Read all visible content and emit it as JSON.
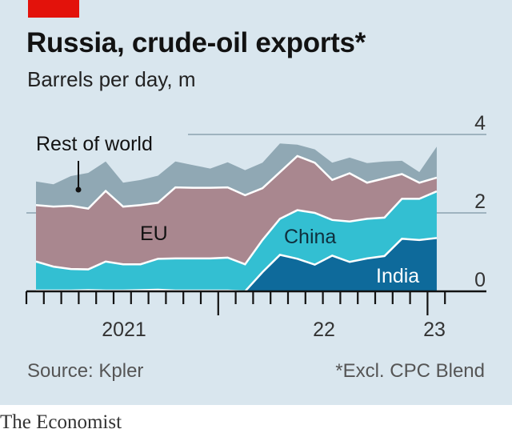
{
  "header": {
    "title": "Russia, crude-oil exports*",
    "subtitle": "Barrels per day, m"
  },
  "footer": {
    "source": "Source: Kpler",
    "footnote": "*Excl. CPC Blend",
    "brand": "The Economist"
  },
  "colors": {
    "rest_of_world": "#90a8b4",
    "eu": "#a9878f",
    "china": "#33bfd2",
    "india": "#0e6a9b",
    "accent": "#e3120b"
  },
  "chart_data": {
    "type": "area",
    "stacked": true,
    "title": "Russia, crude-oil exports*",
    "ylabel": "Barrels per day, m",
    "ylim": [
      0,
      4
    ],
    "yticks": [
      0,
      2,
      4
    ],
    "ytick_labels": [
      "0",
      "2",
      "4"
    ],
    "xtick_labels": [
      "2021",
      "22",
      "23"
    ],
    "x": [
      "2021-02",
      "2021-03",
      "2021-04",
      "2021-05",
      "2021-06",
      "2021-07",
      "2021-08",
      "2021-09",
      "2021-10",
      "2021-11",
      "2021-12",
      "2022-01",
      "2022-02",
      "2022-03",
      "2022-04",
      "2022-05",
      "2022-06",
      "2022-07",
      "2022-08",
      "2022-09",
      "2022-10",
      "2022-11",
      "2022-12",
      "2023-01"
    ],
    "series": [
      {
        "name": "India",
        "values": [
          0.02,
          0.02,
          0.02,
          0.03,
          0.02,
          0.02,
          0.03,
          0.04,
          0.02,
          0.02,
          0.02,
          0.02,
          0,
          0.49,
          0.93,
          0.83,
          0.68,
          0.91,
          0.75,
          0.84,
          0.9,
          1.34,
          1.31,
          1.36
        ]
      },
      {
        "name": "China",
        "values": [
          0.74,
          0.61,
          0.55,
          0.53,
          0.74,
          0.67,
          0.66,
          0.79,
          0.82,
          0.82,
          0.82,
          0.84,
          0.69,
          0.82,
          0.92,
          1.24,
          1.32,
          0.91,
          1.03,
          1.01,
          0.98,
          1.02,
          1.05,
          1.19
        ]
      },
      {
        "name": "EU",
        "values": [
          1.44,
          1.53,
          1.61,
          1.55,
          1.8,
          1.47,
          1.51,
          1.43,
          1.81,
          1.8,
          1.8,
          1.79,
          1.76,
          1.32,
          1.19,
          1.38,
          1.28,
          1.02,
          1.23,
          0.92,
          1.0,
          0.63,
          0.41,
          0.35
        ]
      },
      {
        "name": "Rest of world",
        "values": [
          0.6,
          0.57,
          0.76,
          0.91,
          0.75,
          0.61,
          0.64,
          0.69,
          0.66,
          0.58,
          0.49,
          0.64,
          0.64,
          0.65,
          0.73,
          0.29,
          0.34,
          0.44,
          0.4,
          0.5,
          0.43,
          0.34,
          0.27,
          0.79
        ]
      }
    ],
    "grid": true
  }
}
